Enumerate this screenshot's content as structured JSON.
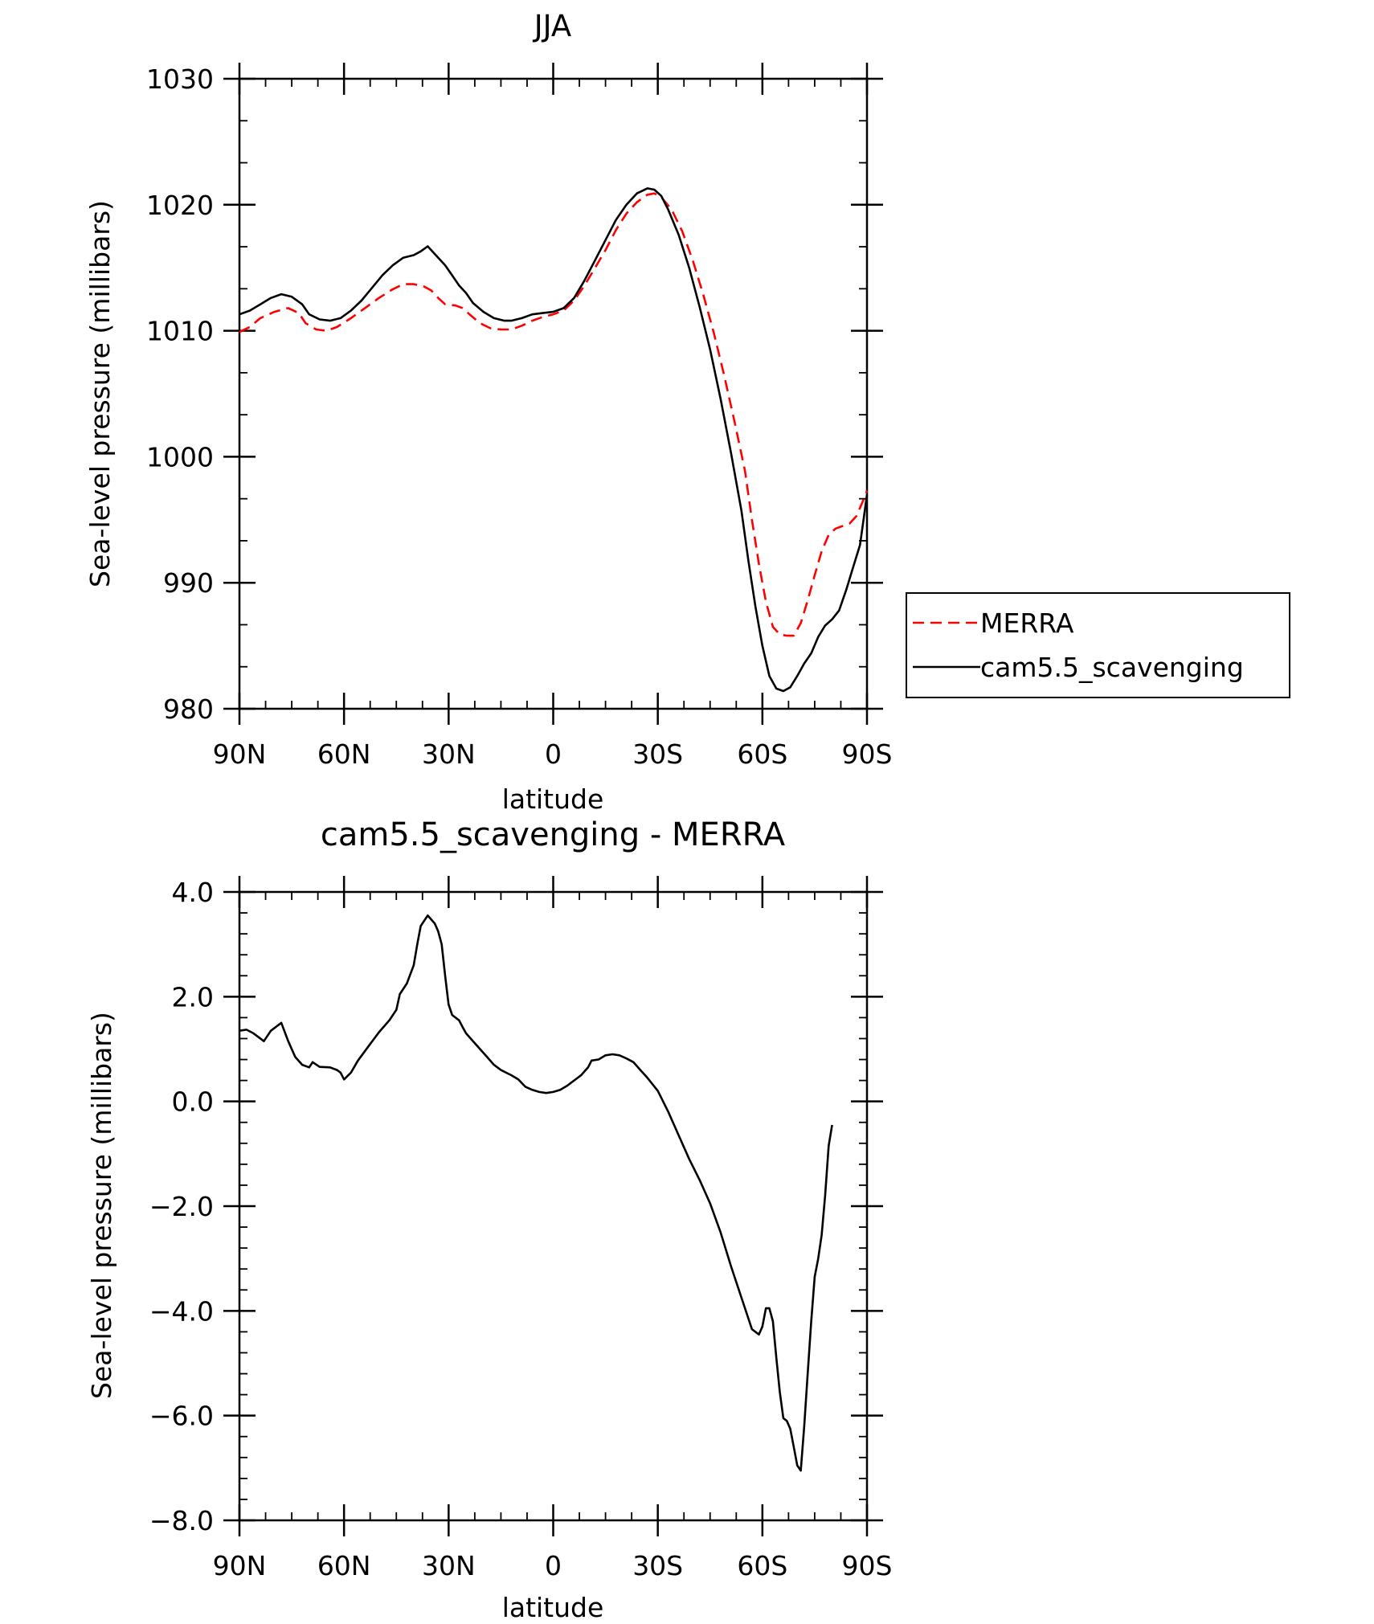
{
  "chart_data": [
    {
      "type": "line",
      "title": "JJA",
      "xlabel": "latitude",
      "ylabel": "Sea-level pressure (millibars)",
      "xlim": [
        -90,
        90
      ],
      "ylim": [
        980,
        1030
      ],
      "x_ticks": [
        {
          "value": -90,
          "label": "90N"
        },
        {
          "value": -60,
          "label": "60N"
        },
        {
          "value": -30,
          "label": "30N"
        },
        {
          "value": 0,
          "label": "0"
        },
        {
          "value": 30,
          "label": "30S"
        },
        {
          "value": 60,
          "label": "60S"
        },
        {
          "value": 90,
          "label": "90S"
        }
      ],
      "y_ticks": [
        {
          "value": 980,
          "label": "980"
        },
        {
          "value": 990,
          "label": "990"
        },
        {
          "value": 1000,
          "label": "1000"
        },
        {
          "value": 1010,
          "label": "1010"
        },
        {
          "value": 1020,
          "label": "1020"
        },
        {
          "value": 1030,
          "label": "1030"
        }
      ],
      "legend_position": "right",
      "x_note": "latitude, north negative, south positive",
      "series": [
        {
          "name": "MERRA",
          "color": "#ff0000",
          "dash": "dashed",
          "points": [
            [
              -90,
              1009.9
            ],
            [
              -87,
              1010.3
            ],
            [
              -84,
              1011.0
            ],
            [
              -80,
              1011.5
            ],
            [
              -76,
              1011.8
            ],
            [
              -73,
              1011.4
            ],
            [
              -71,
              1010.6
            ],
            [
              -68,
              1010.1
            ],
            [
              -65,
              1010.0
            ],
            [
              -62,
              1010.3
            ],
            [
              -58,
              1011.0
            ],
            [
              -54,
              1011.8
            ],
            [
              -50,
              1012.6
            ],
            [
              -46,
              1013.3
            ],
            [
              -43,
              1013.7
            ],
            [
              -40,
              1013.7
            ],
            [
              -37,
              1013.5
            ],
            [
              -35,
              1013.2
            ],
            [
              -33,
              1012.6
            ],
            [
              -31,
              1012.1
            ],
            [
              -28,
              1012.0
            ],
            [
              -26,
              1011.8
            ],
            [
              -24,
              1011.3
            ],
            [
              -21,
              1010.6
            ],
            [
              -18,
              1010.2
            ],
            [
              -15,
              1010.1
            ],
            [
              -12,
              1010.1
            ],
            [
              -9,
              1010.4
            ],
            [
              -6,
              1010.8
            ],
            [
              -3,
              1011.1
            ],
            [
              0,
              1011.3
            ],
            [
              3,
              1011.6
            ],
            [
              6,
              1012.4
            ],
            [
              9,
              1013.6
            ],
            [
              12,
              1015.0
            ],
            [
              15,
              1016.4
            ],
            [
              18,
              1018.0
            ],
            [
              21,
              1019.3
            ],
            [
              24,
              1020.2
            ],
            [
              27,
              1020.8
            ],
            [
              29,
              1020.9
            ],
            [
              31,
              1020.6
            ],
            [
              34,
              1019.6
            ],
            [
              37,
              1017.9
            ],
            [
              40,
              1015.6
            ],
            [
              43,
              1012.9
            ],
            [
              46,
              1009.9
            ],
            [
              49,
              1006.5
            ],
            [
              52,
              1002.8
            ],
            [
              55,
              998.9
            ],
            [
              57,
              995.0
            ],
            [
              59,
              991.5
            ],
            [
              61,
              988.5
            ],
            [
              63,
              986.5
            ],
            [
              65,
              985.9
            ],
            [
              67,
              985.8
            ],
            [
              69,
              985.8
            ],
            [
              71,
              986.8
            ],
            [
              73,
              988.6
            ],
            [
              75,
              990.6
            ],
            [
              77,
              992.5
            ],
            [
              79,
              993.8
            ],
            [
              81,
              994.3
            ],
            [
              83,
              994.5
            ],
            [
              85,
              994.7
            ],
            [
              87,
              995.3
            ],
            [
              89,
              996.6
            ],
            [
              90,
              997.3
            ]
          ]
        },
        {
          "name": "cam5.5_scavenging",
          "color": "#000000",
          "dash": "solid",
          "points": [
            [
              -90,
              1011.3
            ],
            [
              -87,
              1011.6
            ],
            [
              -84,
              1012.1
            ],
            [
              -81,
              1012.6
            ],
            [
              -78,
              1012.9
            ],
            [
              -75,
              1012.7
            ],
            [
              -72,
              1012.1
            ],
            [
              -70,
              1011.3
            ],
            [
              -67,
              1010.9
            ],
            [
              -64,
              1010.8
            ],
            [
              -61,
              1011.0
            ],
            [
              -58,
              1011.6
            ],
            [
              -55,
              1012.4
            ],
            [
              -52,
              1013.4
            ],
            [
              -49,
              1014.4
            ],
            [
              -46,
              1015.2
            ],
            [
              -43,
              1015.8
            ],
            [
              -40,
              1016.0
            ],
            [
              -38,
              1016.3
            ],
            [
              -36,
              1016.7
            ],
            [
              -34,
              1016.1
            ],
            [
              -31,
              1015.2
            ],
            [
              -29,
              1014.4
            ],
            [
              -27,
              1013.6
            ],
            [
              -25,
              1013.0
            ],
            [
              -23,
              1012.2
            ],
            [
              -20,
              1011.5
            ],
            [
              -17,
              1011.0
            ],
            [
              -14,
              1010.8
            ],
            [
              -12,
              1010.8
            ],
            [
              -9,
              1011.0
            ],
            [
              -6,
              1011.3
            ],
            [
              -3,
              1011.4
            ],
            [
              0,
              1011.5
            ],
            [
              3,
              1011.8
            ],
            [
              6,
              1012.6
            ],
            [
              9,
              1014.0
            ],
            [
              12,
              1015.6
            ],
            [
              15,
              1017.2
            ],
            [
              18,
              1018.8
            ],
            [
              21,
              1020.0
            ],
            [
              24,
              1020.9
            ],
            [
              27,
              1021.3
            ],
            [
              29,
              1021.2
            ],
            [
              31,
              1020.7
            ],
            [
              33,
              1019.6
            ],
            [
              36,
              1017.6
            ],
            [
              39,
              1015.0
            ],
            [
              42,
              1011.9
            ],
            [
              45,
              1008.5
            ],
            [
              48,
              1004.6
            ],
            [
              51,
              1000.3
            ],
            [
              54,
              995.7
            ],
            [
              56,
              991.7
            ],
            [
              58,
              988.1
            ],
            [
              60,
              985.0
            ],
            [
              62,
              982.6
            ],
            [
              64,
              981.6
            ],
            [
              66,
              981.4
            ],
            [
              68,
              981.7
            ],
            [
              70,
              982.6
            ],
            [
              72,
              983.6
            ],
            [
              74,
              984.4
            ],
            [
              76,
              985.7
            ],
            [
              78,
              986.6
            ],
            [
              80,
              987.1
            ],
            [
              82,
              987.8
            ],
            [
              84,
              989.4
            ],
            [
              86,
              991.2
            ],
            [
              88,
              993.0
            ],
            [
              89,
              995.0
            ],
            [
              90,
              997.0
            ]
          ]
        }
      ]
    },
    {
      "type": "line",
      "title": "cam5.5_scavenging - MERRA",
      "xlabel": "latitude",
      "ylabel": "Sea-level pressure (millibars)",
      "xlim": [
        -90,
        90
      ],
      "ylim": [
        -8,
        4
      ],
      "x_ticks": [
        {
          "value": -90,
          "label": "90N"
        },
        {
          "value": -60,
          "label": "60N"
        },
        {
          "value": -30,
          "label": "30N"
        },
        {
          "value": 0,
          "label": "0"
        },
        {
          "value": 30,
          "label": "30S"
        },
        {
          "value": 60,
          "label": "60S"
        },
        {
          "value": 90,
          "label": "90S"
        }
      ],
      "y_ticks": [
        {
          "value": -8,
          "label": "-8.0"
        },
        {
          "value": -6,
          "label": "-6.0"
        },
        {
          "value": -4,
          "label": "-4.0"
        },
        {
          "value": -2,
          "label": "-2.0"
        },
        {
          "value": 0,
          "label": "0.0"
        },
        {
          "value": 2,
          "label": "2.0"
        },
        {
          "value": 4,
          "label": "4.0"
        }
      ],
      "x_note": "latitude, north negative, south positive",
      "series": [
        {
          "color": "#000000",
          "dash": "solid",
          "points": [
            [
              -90,
              1.35
            ],
            [
              -88,
              1.37
            ],
            [
              -86,
              1.3
            ],
            [
              -83,
              1.15
            ],
            [
              -81,
              1.35
            ],
            [
              -79,
              1.45
            ],
            [
              -78,
              1.5
            ],
            [
              -76,
              1.15
            ],
            [
              -74,
              0.85
            ],
            [
              -72,
              0.7
            ],
            [
              -70,
              0.65
            ],
            [
              -69,
              0.75
            ],
            [
              -67,
              0.66
            ],
            [
              -64,
              0.65
            ],
            [
              -62,
              0.6
            ],
            [
              -61,
              0.55
            ],
            [
              -60,
              0.42
            ],
            [
              -58,
              0.55
            ],
            [
              -56,
              0.78
            ],
            [
              -53,
              1.05
            ],
            [
              -50,
              1.32
            ],
            [
              -47,
              1.55
            ],
            [
              -45,
              1.75
            ],
            [
              -44,
              2.05
            ],
            [
              -42,
              2.25
            ],
            [
              -40,
              2.6
            ],
            [
              -39,
              3.0
            ],
            [
              -38,
              3.35
            ],
            [
              -36,
              3.55
            ],
            [
              -34,
              3.4
            ],
            [
              -33,
              3.25
            ],
            [
              -32,
              3.0
            ],
            [
              -31,
              2.4
            ],
            [
              -30,
              1.85
            ],
            [
              -29,
              1.65
            ],
            [
              -27,
              1.55
            ],
            [
              -26,
              1.42
            ],
            [
              -25,
              1.3
            ],
            [
              -23,
              1.15
            ],
            [
              -21,
              1.0
            ],
            [
              -19,
              0.85
            ],
            [
              -17,
              0.7
            ],
            [
              -15,
              0.6
            ],
            [
              -12,
              0.5
            ],
            [
              -10,
              0.42
            ],
            [
              -8,
              0.28
            ],
            [
              -6,
              0.22
            ],
            [
              -4,
              0.18
            ],
            [
              -2,
              0.16
            ],
            [
              0,
              0.18
            ],
            [
              2,
              0.22
            ],
            [
              4,
              0.3
            ],
            [
              6,
              0.4
            ],
            [
              8,
              0.5
            ],
            [
              10,
              0.65
            ],
            [
              11,
              0.78
            ],
            [
              13,
              0.8
            ],
            [
              15,
              0.88
            ],
            [
              17,
              0.9
            ],
            [
              19,
              0.88
            ],
            [
              21,
              0.82
            ],
            [
              23,
              0.75
            ],
            [
              25,
              0.6
            ],
            [
              27,
              0.45
            ],
            [
              30,
              0.2
            ],
            [
              33,
              -0.2
            ],
            [
              36,
              -0.65
            ],
            [
              39,
              -1.1
            ],
            [
              42,
              -1.5
            ],
            [
              45,
              -1.95
            ],
            [
              48,
              -2.5
            ],
            [
              51,
              -3.15
            ],
            [
              54,
              -3.75
            ],
            [
              56,
              -4.15
            ],
            [
              57,
              -4.35
            ],
            [
              59,
              -4.45
            ],
            [
              60,
              -4.3
            ],
            [
              61,
              -3.95
            ],
            [
              62,
              -3.95
            ],
            [
              63,
              -4.2
            ],
            [
              64,
              -4.9
            ],
            [
              65,
              -5.55
            ],
            [
              66,
              -6.05
            ],
            [
              67,
              -6.1
            ],
            [
              68,
              -6.25
            ],
            [
              69,
              -6.6
            ],
            [
              70,
              -6.95
            ],
            [
              71,
              -7.05
            ],
            [
              72,
              -6.2
            ],
            [
              73,
              -5.2
            ],
            [
              74,
              -4.2
            ],
            [
              75,
              -3.35
            ],
            [
              76,
              -3.0
            ],
            [
              77,
              -2.55
            ],
            [
              78,
              -1.8
            ],
            [
              79,
              -0.85
            ],
            [
              80,
              -0.45
            ]
          ]
        }
      ]
    }
  ]
}
